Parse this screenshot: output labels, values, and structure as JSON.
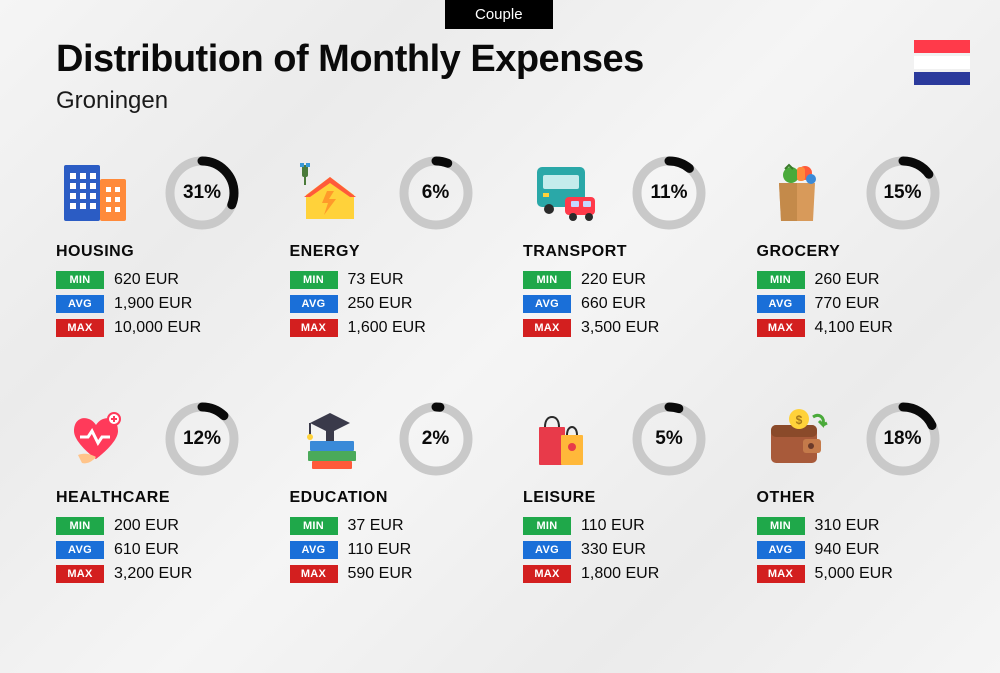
{
  "tab_label": "Couple",
  "title": "Distribution of Monthly Expenses",
  "subtitle": "Groningen",
  "flag_colors": [
    "#ff3a4a",
    "#ffffff",
    "#2b3a9c"
  ],
  "donut": {
    "track_color": "#c9c9c9",
    "fill_color": "#0a0a0a",
    "radius": 32,
    "stroke_width": 9
  },
  "badge_labels": {
    "min": "MIN",
    "avg": "AVG",
    "max": "MAX"
  },
  "badge_colors": {
    "min": "#1fa84a",
    "avg": "#1a6fd8",
    "max": "#d31f1f"
  },
  "currency": "EUR",
  "categories": [
    {
      "key": "housing",
      "name": "HOUSING",
      "pct": 31,
      "min": "620 EUR",
      "avg": "1,900 EUR",
      "max": "10,000 EUR",
      "icon": "buildings-icon"
    },
    {
      "key": "energy",
      "name": "ENERGY",
      "pct": 6,
      "min": "73 EUR",
      "avg": "250 EUR",
      "max": "1,600 EUR",
      "icon": "energy-house-icon"
    },
    {
      "key": "transport",
      "name": "TRANSPORT",
      "pct": 11,
      "min": "220 EUR",
      "avg": "660 EUR",
      "max": "3,500 EUR",
      "icon": "bus-car-icon"
    },
    {
      "key": "grocery",
      "name": "GROCERY",
      "pct": 15,
      "min": "260 EUR",
      "avg": "770 EUR",
      "max": "4,100 EUR",
      "icon": "grocery-bag-icon"
    },
    {
      "key": "healthcare",
      "name": "HEALTHCARE",
      "pct": 12,
      "min": "200 EUR",
      "avg": "610 EUR",
      "max": "3,200 EUR",
      "icon": "healthcare-icon"
    },
    {
      "key": "education",
      "name": "EDUCATION",
      "pct": 2,
      "min": "37 EUR",
      "avg": "110 EUR",
      "max": "590 EUR",
      "icon": "education-icon"
    },
    {
      "key": "leisure",
      "name": "LEISURE",
      "pct": 5,
      "min": "110 EUR",
      "avg": "330 EUR",
      "max": "1,800 EUR",
      "icon": "shopping-bags-icon"
    },
    {
      "key": "other",
      "name": "OTHER",
      "pct": 18,
      "min": "310 EUR",
      "avg": "940 EUR",
      "max": "5,000 EUR",
      "icon": "wallet-icon"
    }
  ]
}
